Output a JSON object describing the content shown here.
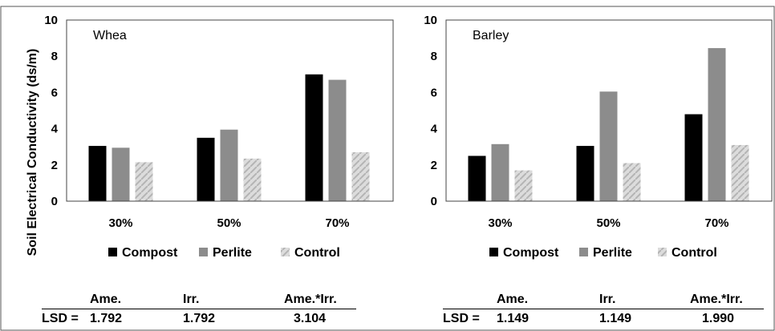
{
  "chart_data": [
    {
      "type": "bar",
      "title": "Whea",
      "ylabel": "Soil Electrical Conductivity (ds/m)",
      "ylim": [
        0,
        10
      ],
      "yticks": [
        0,
        2,
        4,
        6,
        8,
        10
      ],
      "categories": [
        "30%",
        "50%",
        "70%"
      ],
      "series": [
        {
          "name": "Compost",
          "values": [
            3.05,
            3.5,
            7.0
          ],
          "color": "#000000"
        },
        {
          "name": "Perlite",
          "values": [
            2.95,
            3.95,
            6.7
          ],
          "color": "#8c8c8c"
        },
        {
          "name": "Control",
          "values": [
            2.15,
            2.35,
            2.7
          ],
          "color": "#d6d6d6"
        }
      ],
      "legend_position": "bottom",
      "lsd": {
        "label": "LSD =",
        "headers": [
          "Ame.",
          "Irr.",
          "Ame.*Irr."
        ],
        "values": [
          "1.792",
          "1.792",
          "3.104"
        ]
      }
    },
    {
      "type": "bar",
      "title": "Barley",
      "ylabel": "",
      "ylim": [
        0,
        10
      ],
      "yticks": [
        0,
        2,
        4,
        6,
        8,
        10
      ],
      "categories": [
        "30%",
        "50%",
        "70%"
      ],
      "series": [
        {
          "name": "Compost",
          "values": [
            2.5,
            3.05,
            4.8
          ],
          "color": "#000000"
        },
        {
          "name": "Perlite",
          "values": [
            3.15,
            6.05,
            8.45
          ],
          "color": "#8c8c8c"
        },
        {
          "name": "Control",
          "values": [
            1.7,
            2.1,
            3.1
          ],
          "color": "#d6d6d6"
        }
      ],
      "legend_position": "bottom",
      "lsd": {
        "label": "LSD =",
        "headers": [
          "Ame.",
          "Irr.",
          "Ame.*Irr."
        ],
        "values": [
          "1.149",
          "1.149",
          "1.990"
        ]
      }
    }
  ]
}
